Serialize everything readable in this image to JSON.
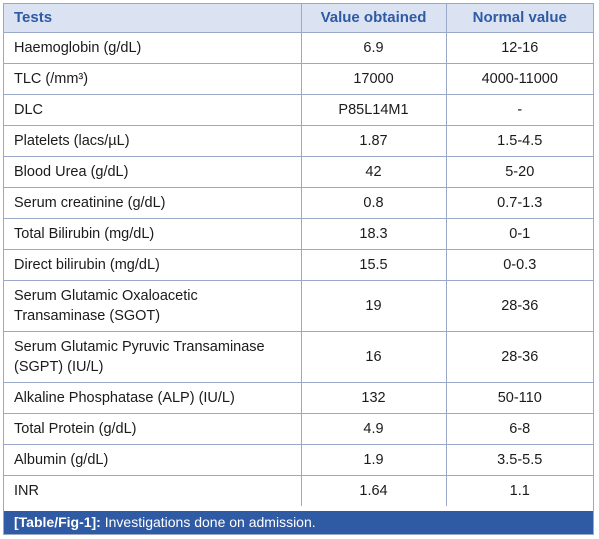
{
  "table": {
    "headers": [
      "Tests",
      "Value obtained",
      "Normal value"
    ],
    "rows": [
      [
        "Haemoglobin (g/dL)",
        "6.9",
        "12-16"
      ],
      [
        "TLC (/mm³)",
        "17000",
        "4000-11000"
      ],
      [
        "DLC",
        "P85L14M1",
        "-"
      ],
      [
        "Platelets (lacs/µL)",
        "1.87",
        "1.5-4.5"
      ],
      [
        "Blood Urea (g/dL)",
        "42",
        "5-20"
      ],
      [
        "Serum creatinine (g/dL)",
        "0.8",
        "0.7-1.3"
      ],
      [
        "Total Bilirubin (mg/dL)",
        "18.3",
        "0-1"
      ],
      [
        "Direct bilirubin (mg/dL)",
        "15.5",
        "0-0.3"
      ],
      [
        "Serum Glutamic Oxaloacetic Transaminase (SGOT)",
        "19",
        "28-36"
      ],
      [
        "Serum Glutamic Pyruvic Transaminase (SGPT) (IU/L)",
        "16",
        "28-36"
      ],
      [
        "Alkaline Phosphatase (ALP) (IU/L)",
        "132",
        "50-110"
      ],
      [
        "Total Protein (g/dL)",
        "4.9",
        "6-8"
      ],
      [
        "Albumin (g/dL)",
        "1.9",
        "3.5-5.5"
      ],
      [
        "INR",
        "1.64",
        "1.1"
      ]
    ]
  },
  "caption": {
    "ref": "[Table/Fig-1]:",
    "text": " Investigations done on admission."
  },
  "colors": {
    "header_bg": "#dbe3f2",
    "header_text": "#2f5aa4",
    "caption_bg": "#2f5aa4",
    "border": "#9aa9c9"
  }
}
